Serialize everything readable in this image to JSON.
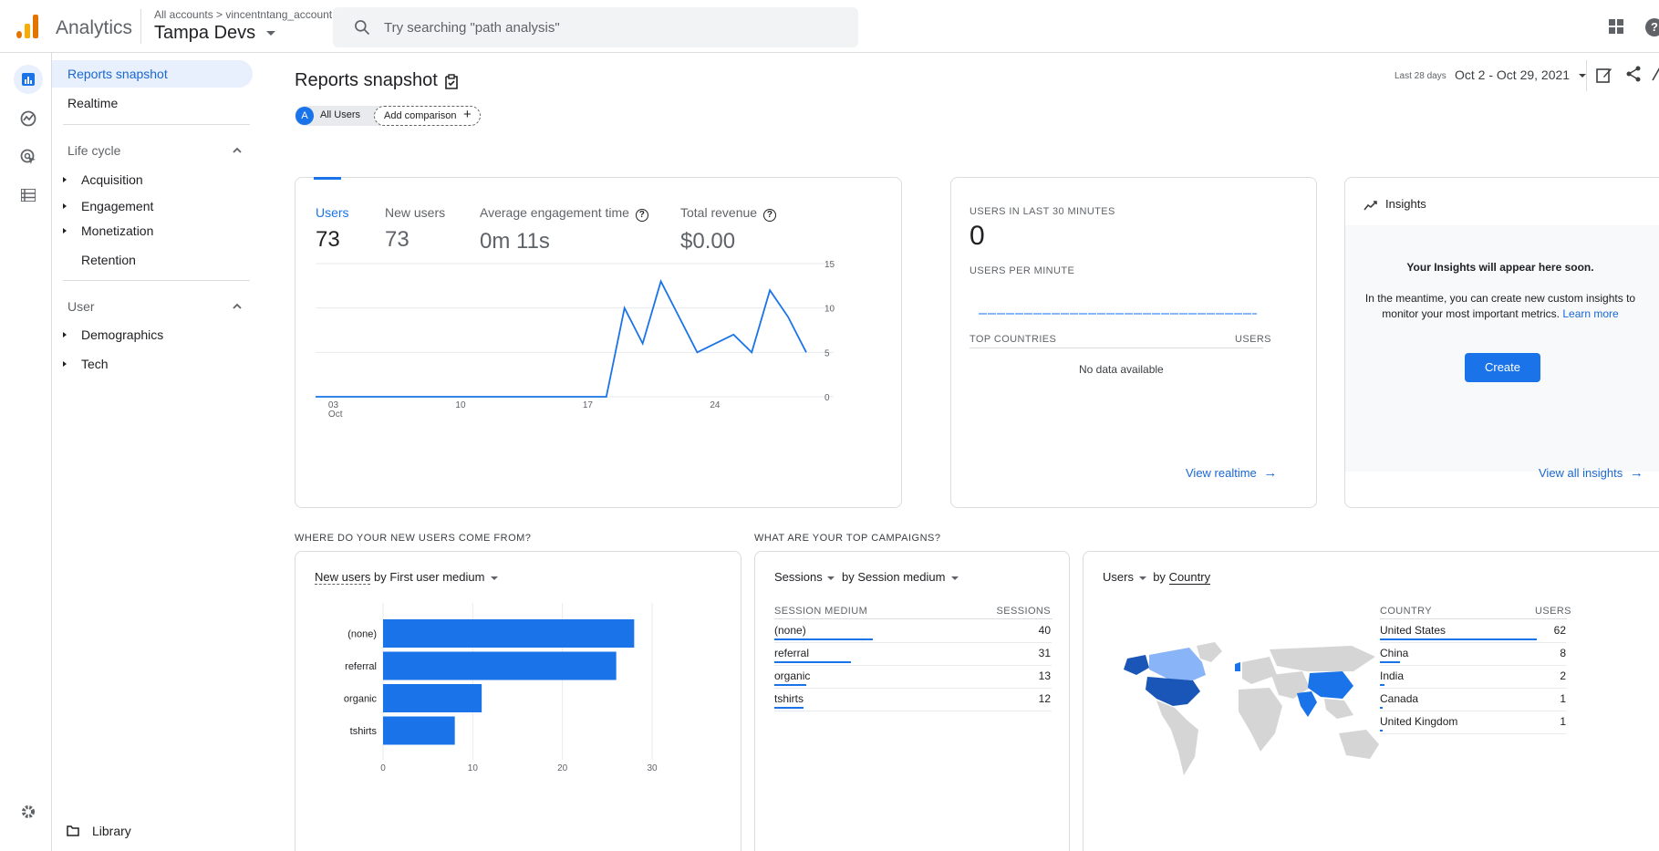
{
  "header": {
    "app_title": "Analytics",
    "breadcrumb": "All accounts > vincentntang_account",
    "property": "Tampa Devs",
    "search_placeholder": "Try searching \"path analysis\""
  },
  "sidenav": {
    "active": "Reports snapshot",
    "realtime": "Realtime",
    "lifecycle_head": "Life cycle",
    "lifecycle_items": [
      "Acquisition",
      "Engagement",
      "Monetization",
      "Retention"
    ],
    "user_head": "User",
    "user_items": [
      "Demographics",
      "Tech"
    ],
    "library": "Library"
  },
  "page": {
    "title": "Reports snapshot",
    "date_prefix": "Last 28 days",
    "date_range": "Oct 2 - Oct 29, 2021",
    "segment_letter": "A",
    "segment": "All Users",
    "add_comparison": "Add comparison"
  },
  "metrics": {
    "users_label": "Users",
    "users_value": "73",
    "new_users_label": "New users",
    "new_users_value": "73",
    "engagement_label": "Average engagement time",
    "engagement_value": "0m 11s",
    "revenue_label": "Total revenue",
    "revenue_value": "$0.00"
  },
  "chart_data": [
    {
      "type": "line",
      "x": [
        "Oct 2",
        "Oct 3",
        "Oct 4",
        "Oct 5",
        "Oct 6",
        "Oct 7",
        "Oct 8",
        "Oct 9",
        "Oct 10",
        "Oct 11",
        "Oct 12",
        "Oct 13",
        "Oct 14",
        "Oct 15",
        "Oct 16",
        "Oct 17",
        "Oct 18",
        "Oct 19",
        "Oct 20",
        "Oct 21",
        "Oct 22",
        "Oct 23",
        "Oct 24",
        "Oct 25",
        "Oct 26",
        "Oct 27",
        "Oct 28",
        "Oct 29"
      ],
      "values": [
        0,
        0,
        0,
        0,
        0,
        0,
        0,
        0,
        0,
        0,
        0,
        0,
        0,
        0,
        0,
        0,
        0,
        10,
        6,
        13,
        9,
        5,
        6,
        7,
        5,
        12,
        9,
        5
      ],
      "x_ticks": [
        {
          "label": "03",
          "sub": "Oct",
          "index": 1
        },
        {
          "label": "10",
          "index": 8
        },
        {
          "label": "17",
          "index": 15
        },
        {
          "label": "24",
          "index": 22
        }
      ],
      "y_ticks": [
        0,
        5,
        10,
        15
      ],
      "ylim": [
        0,
        15
      ],
      "color": "#1a73e8"
    },
    {
      "type": "bar",
      "orientation": "horizontal",
      "title_metric": "New users",
      "title_dimension": "First user medium",
      "categories": [
        "(none)",
        "referral",
        "organic",
        "tshirts"
      ],
      "values": [
        28,
        26,
        11,
        8
      ],
      "x_ticks": [
        0,
        10,
        20,
        30
      ],
      "xlim": [
        0,
        30
      ],
      "color": "#1a73e8"
    }
  ],
  "realtime": {
    "users_label": "USERS IN LAST 30 MINUTES",
    "users_value": "0",
    "per_minute_label": "USERS PER MINUTE",
    "countries_label": "TOP COUNTRIES",
    "users_col": "USERS",
    "empty": "No data available",
    "view_link": "View realtime"
  },
  "insights": {
    "title": "Insights",
    "headline": "Your Insights will appear here soon.",
    "body": "In the meantime, you can create new custom insights to monitor your most important metrics.",
    "learn_more": "Learn more",
    "create": "Create",
    "view_all": "View all insights"
  },
  "sections": {
    "new_users_title": "WHERE DO YOUR NEW USERS COME FROM?",
    "campaigns_title": "WHAT ARE YOUR TOP CAMPAIGNS?"
  },
  "campaigns": {
    "metric": "Sessions",
    "by": "by",
    "dimension": "Session medium",
    "col_dim": "SESSION MEDIUM",
    "col_val": "SESSIONS",
    "rows": [
      {
        "label": "(none)",
        "value": "40",
        "ratio": 1.0
      },
      {
        "label": "referral",
        "value": "31",
        "ratio": 0.775
      },
      {
        "label": "organic",
        "value": "13",
        "ratio": 0.325
      },
      {
        "label": "tshirts",
        "value": "12",
        "ratio": 0.3
      }
    ]
  },
  "countries": {
    "metric": "Users",
    "by": "by",
    "dimension": "Country",
    "col_dim": "COUNTRY",
    "col_val": "USERS",
    "rows": [
      {
        "label": "United States",
        "value": "62",
        "ratio": 1.0
      },
      {
        "label": "China",
        "value": "8",
        "ratio": 0.13
      },
      {
        "label": "India",
        "value": "2",
        "ratio": 0.03
      },
      {
        "label": "Canada",
        "value": "1",
        "ratio": 0.016
      },
      {
        "label": "United Kingdom",
        "value": "1",
        "ratio": 0.016
      }
    ]
  },
  "colors": {
    "accent": "#1a73e8",
    "active_bg": "#e8f0fe",
    "map_high": "#1a56b8",
    "map_mid": "#1a73e8",
    "map_low": "#8ab4f8",
    "map_none": "#d5d5d5"
  }
}
